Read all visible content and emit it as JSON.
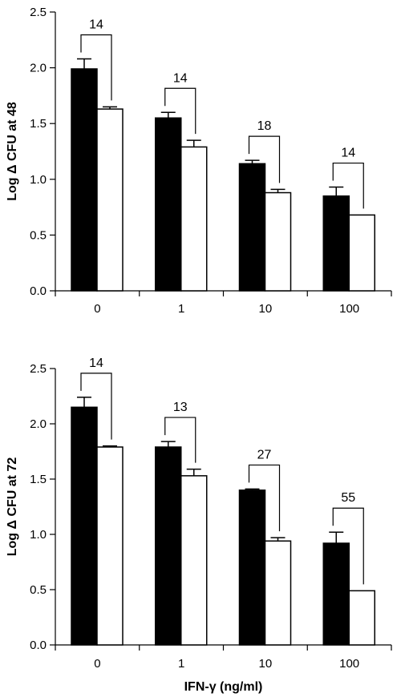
{
  "chart_data": [
    {
      "type": "bar",
      "ylabel": "Log Δ CFU at 48",
      "xlabel": "",
      "ylim": [
        0,
        2.5
      ],
      "yticks": [
        "0.0",
        "0.5",
        "1.0",
        "1.5",
        "2.0",
        "2.5"
      ],
      "categories": [
        "0",
        "1",
        "10",
        "100"
      ],
      "series": [
        {
          "fill": "#000000",
          "values": [
            1.99,
            1.55,
            1.14,
            0.85
          ],
          "errors": [
            0.09,
            0.05,
            0.03,
            0.08
          ]
        },
        {
          "fill": "#ffffff",
          "values": [
            1.63,
            1.29,
            0.88,
            0.68
          ],
          "errors": [
            0.02,
            0.06,
            0.03,
            0.0
          ]
        }
      ],
      "bracket_labels": [
        "14",
        "14",
        "18",
        "14"
      ]
    },
    {
      "type": "bar",
      "ylabel": "Log Δ CFU at 72",
      "xlabel": "IFN-γ (ng/ml)",
      "ylim": [
        0,
        2.5
      ],
      "yticks": [
        "0.0",
        "0.5",
        "1.0",
        "1.5",
        "2.0",
        "2.5"
      ],
      "categories": [
        "0",
        "1",
        "10",
        "100"
      ],
      "series": [
        {
          "fill": "#000000",
          "values": [
            2.15,
            1.79,
            1.4,
            0.92
          ],
          "errors": [
            0.09,
            0.05,
            0.01,
            0.1
          ]
        },
        {
          "fill": "#ffffff",
          "values": [
            1.79,
            1.53,
            0.94,
            0.49
          ],
          "errors": [
            0.01,
            0.06,
            0.03,
            0.0
          ]
        }
      ],
      "bracket_labels": [
        "14",
        "13",
        "27",
        "55"
      ]
    }
  ]
}
